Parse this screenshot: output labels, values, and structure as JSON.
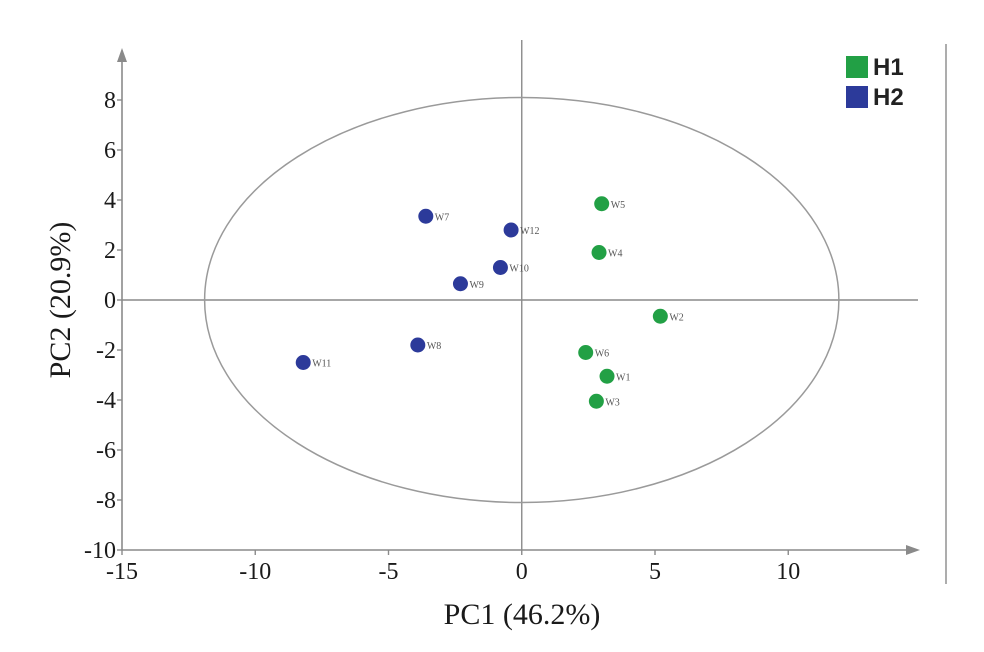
{
  "chart_data": {
    "type": "scatter",
    "title": "",
    "xlabel": "PC1 (46.2%)",
    "ylabel": "PC2 (20.9%)",
    "xlim": [
      -15,
      15
    ],
    "ylim": [
      -10,
      10
    ],
    "xticks": [
      -15,
      -10,
      -5,
      0,
      5,
      10
    ],
    "yticks": [
      -10,
      -8,
      -6,
      -4,
      -2,
      0,
      2,
      4,
      6,
      8
    ],
    "grid": false,
    "legend": "top-right",
    "confidence_ellipse": {
      "center": [
        0,
        0
      ],
      "rx": 11.9,
      "ry": 8.1
    },
    "series": [
      {
        "name": "H1",
        "color": "#22a045",
        "points": [
          {
            "label": "W5",
            "x": 3.0,
            "y": 3.85
          },
          {
            "label": "W4",
            "x": 2.9,
            "y": 1.9
          },
          {
            "label": "W2",
            "x": 5.2,
            "y": -0.65
          },
          {
            "label": "W6",
            "x": 2.4,
            "y": -2.1
          },
          {
            "label": "W1",
            "x": 3.2,
            "y": -3.05
          },
          {
            "label": "W3",
            "x": 2.8,
            "y": -4.05
          }
        ]
      },
      {
        "name": "H2",
        "color": "#2c3a9a",
        "points": [
          {
            "label": "W7",
            "x": -3.6,
            "y": 3.35
          },
          {
            "label": "W12",
            "x": -0.4,
            "y": 2.8
          },
          {
            "label": "W10",
            "x": -0.8,
            "y": 1.3
          },
          {
            "label": "W9",
            "x": -2.3,
            "y": 0.65
          },
          {
            "label": "W8",
            "x": -3.9,
            "y": -1.8
          },
          {
            "label": "W11",
            "x": -8.2,
            "y": -2.5
          }
        ]
      }
    ]
  }
}
